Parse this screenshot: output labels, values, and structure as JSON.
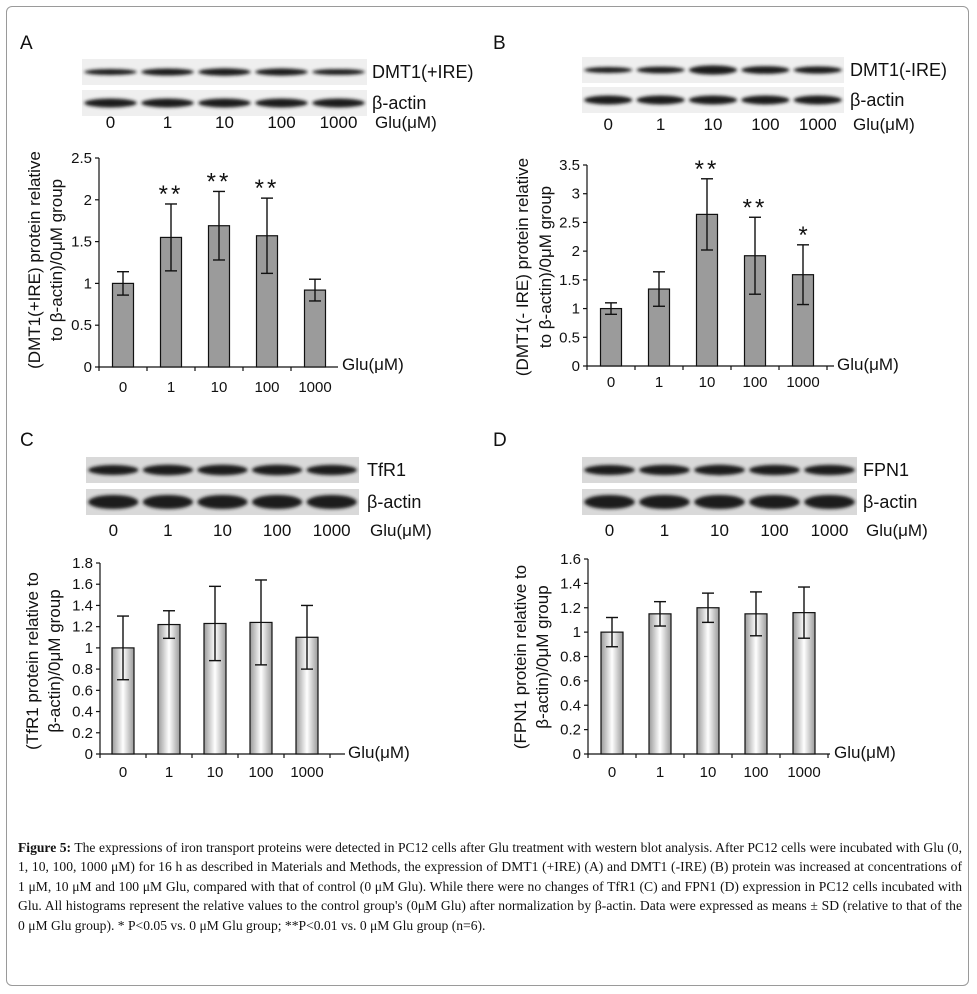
{
  "chart_data": [
    {
      "panel": "A",
      "type": "bar",
      "style": "gray",
      "blot": {
        "target": "DMT1(+IRE)",
        "loading": "β-actin"
      },
      "categories": [
        "0",
        "1",
        "10",
        "100",
        "1000"
      ],
      "values": [
        1.0,
        1.55,
        1.69,
        1.57,
        0.92
      ],
      "errors": [
        0.14,
        0.4,
        0.41,
        0.45,
        0.13
      ],
      "significance": [
        "",
        "**",
        "**",
        "**",
        ""
      ],
      "ylim": [
        0,
        2.5
      ],
      "yticks": [
        "0",
        "0.5",
        "1",
        "1.5",
        "2",
        "2.5"
      ],
      "xlabel": "Glu(μM)",
      "ylabel_lines": [
        "(DMT1(+IRE) protein relative",
        "to β-actin)/0μM group"
      ]
    },
    {
      "panel": "B",
      "type": "bar",
      "style": "gray",
      "blot": {
        "target": "DMT1(-IRE)",
        "loading": "β-actin"
      },
      "categories": [
        "0",
        "1",
        "10",
        "100",
        "1000"
      ],
      "values": [
        1.0,
        1.34,
        2.64,
        1.92,
        1.59
      ],
      "errors": [
        0.1,
        0.3,
        0.62,
        0.67,
        0.52
      ],
      "significance": [
        "",
        "",
        "**",
        "**",
        "*"
      ],
      "ylim": [
        0,
        3.5
      ],
      "yticks": [
        "0",
        "0.5",
        "1",
        "1.5",
        "2",
        "2.5",
        "3",
        "3.5"
      ],
      "xlabel": "Glu(μM)",
      "ylabel_lines": [
        "(DMT1(- IRE) protein relative",
        "to β-actin)/0μM group"
      ]
    },
    {
      "panel": "C",
      "type": "bar",
      "style": "gradient",
      "blot": {
        "target": "TfR1",
        "loading": "β-actin"
      },
      "categories": [
        "0",
        "1",
        "10",
        "100",
        "1000"
      ],
      "values": [
        1.0,
        1.22,
        1.23,
        1.24,
        1.1
      ],
      "errors": [
        0.3,
        0.13,
        0.35,
        0.4,
        0.3
      ],
      "significance": [
        "",
        "",
        "",
        "",
        ""
      ],
      "ylim": [
        0,
        1.8
      ],
      "yticks": [
        "0",
        "0.2",
        "0.4",
        "0.6",
        "0.8",
        "1",
        "1.2",
        "1.4",
        "1.6",
        "1.8"
      ],
      "xlabel": "Glu(μM)",
      "ylabel_lines": [
        "(TfR1 protein relative to",
        "β-actin)/0μM group"
      ]
    },
    {
      "panel": "D",
      "type": "bar",
      "style": "gradient",
      "blot": {
        "target": "FPN1",
        "loading": "β-actin"
      },
      "categories": [
        "0",
        "1",
        "10",
        "100",
        "1000"
      ],
      "values": [
        1.0,
        1.15,
        1.2,
        1.15,
        1.16
      ],
      "errors": [
        0.12,
        0.1,
        0.12,
        0.18,
        0.21
      ],
      "significance": [
        "",
        "",
        "",
        "",
        ""
      ],
      "ylim": [
        0,
        1.6
      ],
      "yticks": [
        "0",
        "0.2",
        "0.4",
        "0.6",
        "0.8",
        "1",
        "1.2",
        "1.4",
        "1.6"
      ],
      "xlabel": "Glu(μM)",
      "ylabel_lines": [
        "(FPN1 protein relative to",
        "β-actin)/0μM group"
      ]
    }
  ],
  "caption": {
    "label": "Figure 5:",
    "text": "The expressions of iron transport proteins were detected in PC12 cells after Glu treatment with western blot analysis. After PC12 cells were incubated with Glu (0, 1, 10, 100, 1000 μM) for 16 h as described in Materials and Methods, the expression of DMT1 (+IRE) (A) and DMT1 (-IRE) (B) protein was increased at concentrations of 1 μM, 10 μM and 100 μM Glu, compared with that of control (0 μM Glu). While there were no changes of TfR1 (C) and FPN1 (D) expression in PC12 cells incubated with Glu. All histograms represent the relative values to the control group's (0μM Glu) after normalization by β-actin. Data were expressed as means ± SD (relative to that of the 0 μM Glu group). * P<0.05 vs. 0 μM Glu group; **P<0.01 vs. 0 μM Glu group (n=6)."
  }
}
